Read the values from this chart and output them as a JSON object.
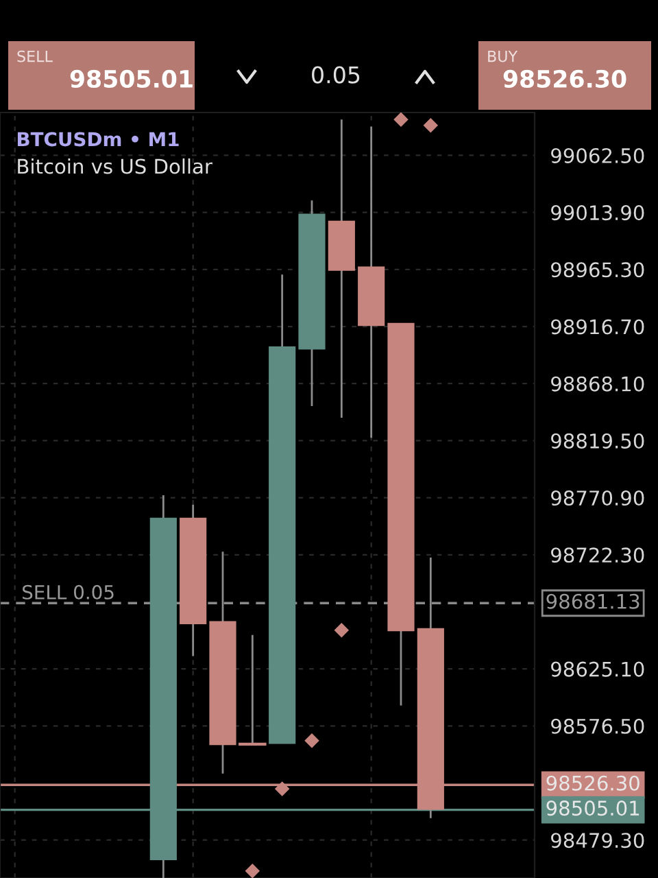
{
  "chart_data": {
    "type": "candlestick",
    "title": "BTCUSDm • M1",
    "subtitle": "Bitcoin vs US Dollar",
    "annotations": [
      "SELL",
      "98505.01",
      "0.05",
      "BUY",
      "98526.30",
      {
        "text": "SELL 0.05",
        "y": 98681.13
      }
    ],
    "categories": [
      null,
      null,
      null,
      null,
      null,
      null,
      null,
      null,
      null,
      null,
      null,
      null,
      null,
      null,
      null,
      null,
      null,
      null
    ],
    "ohlc": [
      null,
      null,
      null,
      null,
      null,
      [
        98463,
        98773,
        98447,
        98753
      ],
      [
        98753,
        98765,
        98636,
        98664
      ],
      [
        98665,
        98725,
        98536,
        98561
      ],
      [
        98561,
        98654,
        98561,
        98561
      ],
      [
        98562,
        98961,
        98562,
        98899
      ],
      [
        98898,
        99024,
        98849,
        99012
      ],
      [
        99006,
        99093,
        98839,
        98965
      ],
      [
        98967,
        99087,
        98822,
        98918
      ],
      [
        98919,
        98919,
        98594,
        98658
      ],
      [
        98659,
        98720,
        98498,
        98506
      ],
      null,
      null,
      null
    ],
    "colors": [
      null,
      null,
      null,
      null,
      null,
      "#5e8c83",
      "#c7857f",
      "#c7857f",
      "#c7857f",
      "#5e8c83",
      "#5e8c83",
      "#c7857f",
      "#c7857f",
      "#c7857f",
      "#c7857f",
      null,
      null,
      null
    ],
    "series": [
      {
        "type": "scatter",
        "color": "#c7857f",
        "marker": "diamond",
        "values": [
          null,
          null,
          null,
          null,
          null,
          null,
          null,
          null,
          98453,
          98523,
          98564,
          98658,
          null,
          99093,
          99088,
          null,
          null,
          null
        ]
      }
    ],
    "ylim": [
      98447,
      99099
    ],
    "yticks": [
      {
        "value": 98479.3,
        "label": "98479.30"
      },
      {
        "value": 98576.5,
        "label": "98576.50"
      },
      {
        "value": 98625.1,
        "label": "98625.10"
      },
      {
        "value": 98722.3,
        "label": "98722.30"
      },
      {
        "value": 98770.9,
        "label": "98770.90"
      },
      {
        "value": 98819.5,
        "label": "98819.50"
      },
      {
        "value": 98868.1,
        "label": "98868.10"
      },
      {
        "value": 98916.7,
        "label": "98916.70"
      },
      {
        "value": 98965.3,
        "label": "98965.30"
      },
      {
        "value": 99013.9,
        "label": "99013.90"
      },
      {
        "value": 99062.5,
        "label": "99062.50"
      }
    ],
    "ref_lines": [
      {
        "axis": "y",
        "value": 98681.13,
        "label": "98681.13",
        "line_style": "dashed",
        "color": "#8a8a8a"
      },
      {
        "axis": "y",
        "value": 98526.3,
        "label": "98526.30",
        "line_style": "solid",
        "color": "#c7857f"
      },
      {
        "axis": "y",
        "value": 98505.01,
        "label": "98505.01",
        "line_style": "solid",
        "color": "#5e8c83"
      }
    ],
    "grid": true
  }
}
